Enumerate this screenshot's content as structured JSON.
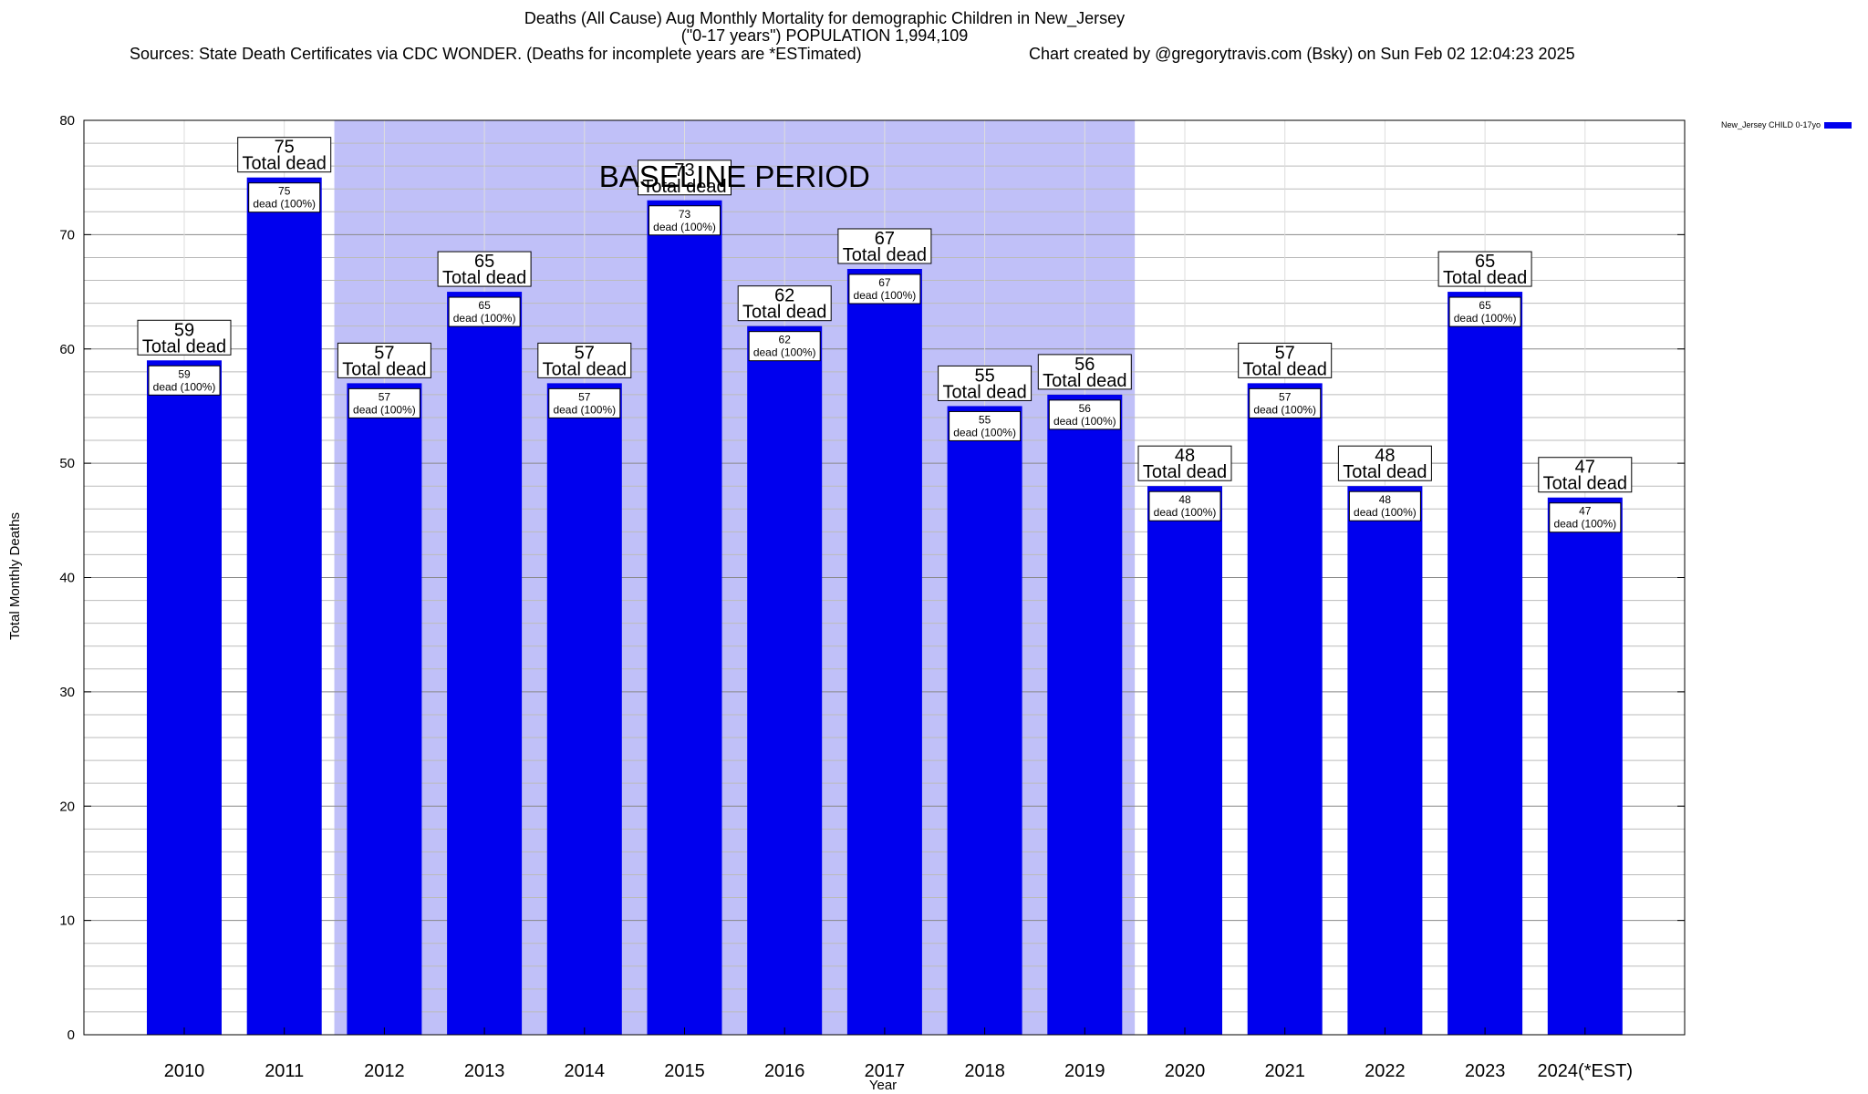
{
  "header": {
    "title_line1": "Deaths (All Cause) Aug Monthly Mortality for demographic Children in New_Jersey",
    "title_line2": "(\"0-17 years\") POPULATION 1,994,109",
    "sources": "Sources: State Death Certificates via CDC WONDER. (Deaths for incomplete years are *ESTimated)",
    "credit": "Chart created by @gregorytravis.com (Bsky) on Sun Feb 02 12:04:23 2025"
  },
  "chart_data": {
    "type": "bar",
    "title": "Deaths (All Cause) Aug Monthly Mortality for demographic Children in New_Jersey",
    "xlabel": "Year",
    "ylabel": "Total Monthly Deaths",
    "ylim": [
      0,
      80
    ],
    "yticks": [
      0,
      10,
      20,
      30,
      40,
      50,
      60,
      70,
      80
    ],
    "minor_tick_step": 2,
    "grid": true,
    "categories": [
      "2010",
      "2011",
      "2012",
      "2013",
      "2014",
      "2015",
      "2016",
      "2017",
      "2018",
      "2019",
      "2020",
      "2021",
      "2022",
      "2023",
      "2024(*EST)"
    ],
    "series": [
      {
        "name": "New_Jersey CHILD 0-17yo",
        "color": "#0000ee",
        "values": [
          59,
          75,
          57,
          65,
          57,
          73,
          62,
          67,
          55,
          56,
          48,
          57,
          48,
          65,
          47
        ]
      }
    ],
    "total_label": "Total dead",
    "segment_label_suffix": "dead (100%)",
    "baseline_period": {
      "label": "BASELINE PERIOD",
      "start": "2012",
      "end": "2019",
      "color": "#c0c0f8"
    },
    "legend": {
      "position": "top-right",
      "entry": "New_Jersey CHILD 0-17yo"
    }
  }
}
